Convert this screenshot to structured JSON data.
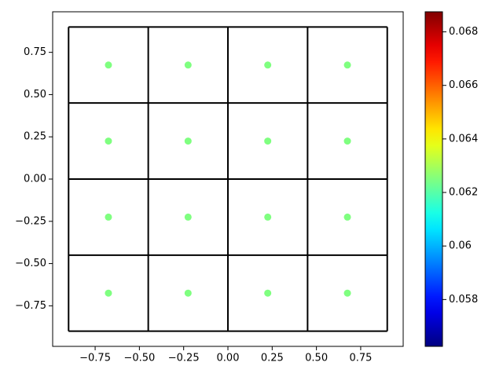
{
  "chart_data": {
    "type": "scatter",
    "x": [
      -0.675,
      -0.225,
      0.225,
      0.675,
      -0.675,
      -0.225,
      0.225,
      0.675,
      -0.675,
      -0.225,
      0.225,
      0.675,
      -0.675,
      -0.225,
      0.225,
      0.675
    ],
    "y": [
      0.675,
      0.675,
      0.675,
      0.675,
      0.225,
      0.225,
      0.225,
      0.225,
      -0.225,
      -0.225,
      -0.225,
      -0.225,
      -0.675,
      -0.675,
      -0.675,
      -0.675
    ],
    "values": [
      0.0625,
      0.0625,
      0.0625,
      0.0625,
      0.0625,
      0.0625,
      0.0625,
      0.0625,
      0.0625,
      0.0625,
      0.0625,
      0.0625,
      0.0625,
      0.0625,
      0.0625,
      0.0625
    ],
    "cell_edges": [
      -0.9,
      -0.45,
      0,
      0.45,
      0.9
    ],
    "colormap": "jet",
    "clim": [
      0.05625,
      0.06875
    ],
    "cticks": [
      0.058,
      0.06,
      0.062,
      0.064,
      0.066,
      0.068
    ],
    "xlim": [
      -0.99,
      0.99
    ],
    "ylim": [
      -0.99,
      0.99
    ],
    "xticks": [
      {
        "value": -0.75,
        "label": "−0.75"
      },
      {
        "value": -0.5,
        "label": "−0.50"
      },
      {
        "value": -0.25,
        "label": "−0.25"
      },
      {
        "value": 0,
        "label": "0.00"
      },
      {
        "value": 0.25,
        "label": "0.25"
      },
      {
        "value": 0.5,
        "label": "0.50"
      },
      {
        "value": 0.75,
        "label": "0.75"
      }
    ],
    "yticks": [
      {
        "value": -0.75,
        "label": "−0.75"
      },
      {
        "value": -0.5,
        "label": "−0.50"
      },
      {
        "value": -0.25,
        "label": "−0.25"
      },
      {
        "value": 0,
        "label": "0.00"
      },
      {
        "value": 0.25,
        "label": "0.25"
      },
      {
        "value": 0.5,
        "label": "0.50"
      },
      {
        "value": 0.75,
        "label": "0.75"
      }
    ]
  }
}
